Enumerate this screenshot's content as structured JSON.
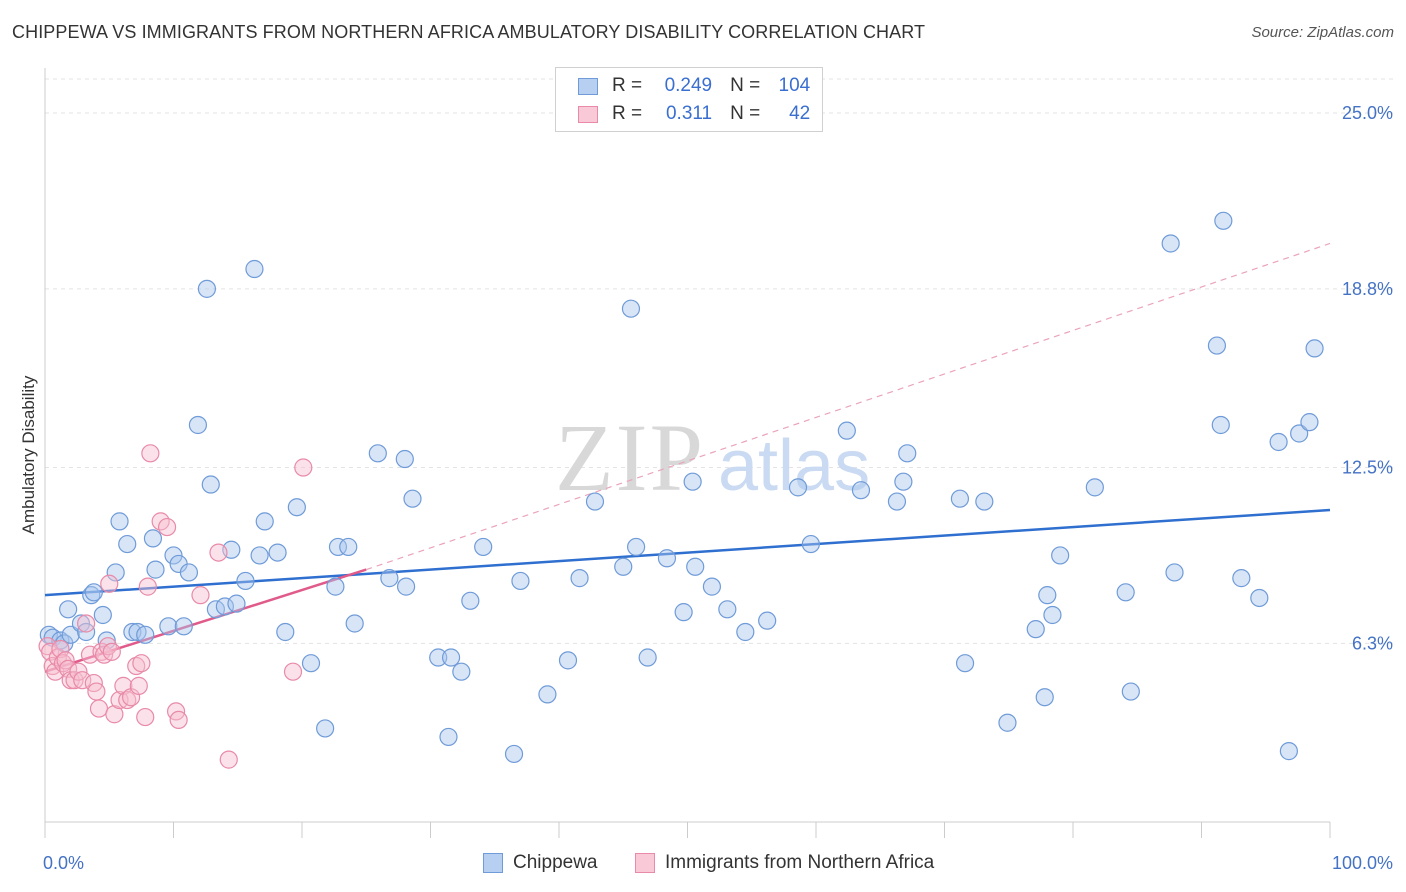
{
  "title": "CHIPPEWA VS IMMIGRANTS FROM NORTHERN AFRICA AMBULATORY DISABILITY CORRELATION CHART",
  "source": "Source: ZipAtlas.com",
  "watermark": {
    "zip": "ZIP",
    "atlas": "atlas"
  },
  "colors": {
    "blue_fill": "#a9c6ee",
    "blue_stroke": "#6f9bd8",
    "blue_line": "#2f6fcf",
    "pink_fill": "#f7bfd0",
    "pink_stroke": "#e88aa8",
    "pink_line": "#e05a8a",
    "tick_text": "#4472c4",
    "grid": "#e3e3e3"
  },
  "legend": {
    "rows": [
      {
        "r_label": "R =",
        "r_value": "0.249",
        "n_label": "N =",
        "n_value": "104",
        "color": "blue"
      },
      {
        "r_label": "R =",
        "r_value": "0.311",
        "n_label": "N =",
        "n_value": "42",
        "color": "pink"
      }
    ]
  },
  "bottom_legend": [
    {
      "label": "Chippewa",
      "color": "blue"
    },
    {
      "label": "Immigrants from Northern Africa",
      "color": "pink"
    }
  ],
  "chart_data": {
    "type": "scatter",
    "title": "CHIPPEWA VS IMMIGRANTS FROM NORTHERN AFRICA AMBULATORY DISABILITY CORRELATION CHART",
    "xlabel": "",
    "ylabel": "Ambulatory Disability",
    "xlim": [
      0,
      100
    ],
    "ylim": [
      0,
      26.2
    ],
    "x_tick_labels": [
      "0.0%",
      "100.0%"
    ],
    "y_ticks": [
      6.3,
      12.5,
      18.8,
      25.0
    ],
    "y_tick_labels": [
      "6.3%",
      "12.5%",
      "18.8%",
      "25.0%"
    ],
    "grid": true,
    "legend_position": "top-center",
    "series": [
      {
        "name": "Chippewa",
        "color": "blue",
        "trend": {
          "x0": 0,
          "y0": 8.0,
          "x1": 100,
          "y1": 11.0,
          "style": "solid"
        },
        "points": [
          [
            0.3,
            6.6
          ],
          [
            0.6,
            6.5
          ],
          [
            1.2,
            6.4
          ],
          [
            1.5,
            6.3
          ],
          [
            2.0,
            6.6
          ],
          [
            1.8,
            7.5
          ],
          [
            2.8,
            7.0
          ],
          [
            3.2,
            6.7
          ],
          [
            3.6,
            8.0
          ],
          [
            3.8,
            8.1
          ],
          [
            4.5,
            7.3
          ],
          [
            4.8,
            6.4
          ],
          [
            5.5,
            8.8
          ],
          [
            5.8,
            10.6
          ],
          [
            6.4,
            9.8
          ],
          [
            6.8,
            6.7
          ],
          [
            7.2,
            6.7
          ],
          [
            7.8,
            6.6
          ],
          [
            8.4,
            10.0
          ],
          [
            8.6,
            8.9
          ],
          [
            9.6,
            6.9
          ],
          [
            10.0,
            9.4
          ],
          [
            10.4,
            9.1
          ],
          [
            10.8,
            6.9
          ],
          [
            11.2,
            8.8
          ],
          [
            11.9,
            14.0
          ],
          [
            12.6,
            18.8
          ],
          [
            12.9,
            11.9
          ],
          [
            13.3,
            7.5
          ],
          [
            14.0,
            7.6
          ],
          [
            14.5,
            9.6
          ],
          [
            14.9,
            7.7
          ],
          [
            15.6,
            8.5
          ],
          [
            16.3,
            19.5
          ],
          [
            16.7,
            9.4
          ],
          [
            17.1,
            10.6
          ],
          [
            18.1,
            9.5
          ],
          [
            18.7,
            6.7
          ],
          [
            19.6,
            11.1
          ],
          [
            20.7,
            5.6
          ],
          [
            21.8,
            3.3
          ],
          [
            22.6,
            8.3
          ],
          [
            22.8,
            9.7
          ],
          [
            23.6,
            9.7
          ],
          [
            24.1,
            7.0
          ],
          [
            25.9,
            13.0
          ],
          [
            26.8,
            8.6
          ],
          [
            28.0,
            12.8
          ],
          [
            28.1,
            8.3
          ],
          [
            28.6,
            11.4
          ],
          [
            30.6,
            5.8
          ],
          [
            31.6,
            5.8
          ],
          [
            31.4,
            3.0
          ],
          [
            32.4,
            5.3
          ],
          [
            33.1,
            7.8
          ],
          [
            34.1,
            9.7
          ],
          [
            36.5,
            2.4
          ],
          [
            37.0,
            8.5
          ],
          [
            39.1,
            4.5
          ],
          [
            40.7,
            5.7
          ],
          [
            41.6,
            8.6
          ],
          [
            42.8,
            11.3
          ],
          [
            45.0,
            9.0
          ],
          [
            45.6,
            18.1
          ],
          [
            46.0,
            9.7
          ],
          [
            46.9,
            5.8
          ],
          [
            48.4,
            9.3
          ],
          [
            49.7,
            7.4
          ],
          [
            50.4,
            12.0
          ],
          [
            50.6,
            9.0
          ],
          [
            51.9,
            8.3
          ],
          [
            53.1,
            7.5
          ],
          [
            54.5,
            6.7
          ],
          [
            56.2,
            7.1
          ],
          [
            58.6,
            11.8
          ],
          [
            59.6,
            9.8
          ],
          [
            62.4,
            13.8
          ],
          [
            63.5,
            11.7
          ],
          [
            66.3,
            11.3
          ],
          [
            66.8,
            12.0
          ],
          [
            67.1,
            13.0
          ],
          [
            71.2,
            11.4
          ],
          [
            71.6,
            5.6
          ],
          [
            73.1,
            11.3
          ],
          [
            74.9,
            3.5
          ],
          [
            77.1,
            6.8
          ],
          [
            77.8,
            4.4
          ],
          [
            78.0,
            8.0
          ],
          [
            78.4,
            7.3
          ],
          [
            79.0,
            9.4
          ],
          [
            81.7,
            11.8
          ],
          [
            84.1,
            8.1
          ],
          [
            84.5,
            4.6
          ],
          [
            87.6,
            20.4
          ],
          [
            87.9,
            8.8
          ],
          [
            91.2,
            16.8
          ],
          [
            91.5,
            14.0
          ],
          [
            91.7,
            21.2
          ],
          [
            93.1,
            8.6
          ],
          [
            94.5,
            7.9
          ],
          [
            96.0,
            13.4
          ],
          [
            96.8,
            2.5
          ],
          [
            97.6,
            13.7
          ],
          [
            98.4,
            14.1
          ],
          [
            98.8,
            16.7
          ]
        ]
      },
      {
        "name": "Immigrants from Northern Africa",
        "color": "pink",
        "trend": {
          "x0": 0,
          "y0": 5.3,
          "x1": 25,
          "y1": 8.9,
          "style": "solid",
          "extended": {
            "x0": 25,
            "y0": 8.9,
            "x1": 100,
            "y1": 20.4,
            "style": "dashed"
          }
        },
        "points": [
          [
            0.2,
            6.2
          ],
          [
            0.4,
            6.0
          ],
          [
            0.6,
            5.5
          ],
          [
            0.8,
            5.3
          ],
          [
            1.0,
            5.8
          ],
          [
            1.2,
            6.1
          ],
          [
            1.4,
            5.6
          ],
          [
            1.6,
            5.7
          ],
          [
            1.8,
            5.4
          ],
          [
            2.0,
            5.0
          ],
          [
            2.3,
            5.0
          ],
          [
            2.6,
            5.3
          ],
          [
            2.9,
            5.0
          ],
          [
            3.2,
            7.0
          ],
          [
            3.5,
            5.9
          ],
          [
            3.8,
            4.9
          ],
          [
            4.0,
            4.6
          ],
          [
            4.2,
            4.0
          ],
          [
            4.4,
            6.0
          ],
          [
            4.6,
            5.9
          ],
          [
            4.9,
            6.2
          ],
          [
            5.0,
            8.4
          ],
          [
            5.2,
            6.0
          ],
          [
            5.4,
            3.8
          ],
          [
            5.8,
            4.3
          ],
          [
            6.1,
            4.8
          ],
          [
            6.4,
            4.3
          ],
          [
            6.7,
            4.4
          ],
          [
            7.1,
            5.5
          ],
          [
            7.3,
            4.8
          ],
          [
            7.5,
            5.6
          ],
          [
            7.8,
            3.7
          ],
          [
            8.0,
            8.3
          ],
          [
            8.2,
            13.0
          ],
          [
            9.0,
            10.6
          ],
          [
            9.5,
            10.4
          ],
          [
            10.2,
            3.9
          ],
          [
            10.4,
            3.6
          ],
          [
            12.1,
            8.0
          ],
          [
            13.5,
            9.5
          ],
          [
            14.3,
            2.2
          ],
          [
            19.3,
            5.3
          ],
          [
            20.1,
            12.5
          ]
        ]
      }
    ]
  }
}
